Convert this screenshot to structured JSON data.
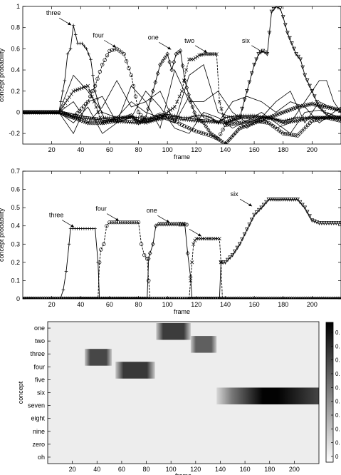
{
  "chart_data": [
    {
      "type": "line",
      "title": "",
      "xlabel": "frame",
      "ylabel": "concept probability",
      "xlim": [
        0,
        220
      ],
      "ylim": [
        -0.3,
        1.0
      ],
      "xticks": [
        20,
        40,
        60,
        80,
        100,
        120,
        140,
        160,
        180,
        200
      ],
      "yticks": [
        -0.2,
        0,
        0.2,
        0.4,
        0.6,
        0.8,
        1
      ],
      "ytick_labels": [
        "-0.2",
        "0",
        "0.2",
        "0.4",
        "0.6",
        "0.8",
        "1"
      ],
      "grid": false,
      "annotations": [
        {
          "text": "three",
          "x": 35,
          "y": 0.81
        },
        {
          "text": "four",
          "x": 66,
          "y": 0.6
        },
        {
          "text": "one",
          "x": 104,
          "y": 0.58
        },
        {
          "text": "two",
          "x": 129,
          "y": 0.55
        },
        {
          "text": "six",
          "x": 168,
          "y": 0.55
        }
      ],
      "series": [
        {
          "marker": "plus",
          "x": [
            0,
            25,
            29,
            31,
            33,
            35,
            38,
            41,
            44,
            47,
            50,
            53,
            56,
            60,
            65,
            70,
            75,
            80,
            85,
            90,
            95,
            100,
            105,
            110,
            115,
            120,
            125,
            130,
            135,
            140,
            150,
            160,
            170,
            180,
            190,
            200,
            210,
            220
          ],
          "y": [
            0,
            0,
            0.3,
            0.55,
            0.6,
            0.82,
            0.65,
            0.65,
            0.6,
            0.5,
            0.2,
            0.05,
            -0.05,
            -0.05,
            -0.05,
            -0.05,
            -0.04,
            -0.05,
            -0.06,
            -0.05,
            -0.03,
            -0.02,
            -0.03,
            -0.05,
            -0.05,
            -0.03,
            -0.03,
            -0.05,
            -0.1,
            -0.05,
            -0.03,
            -0.03,
            -0.05,
            -0.08,
            -0.05,
            -0.05,
            -0.05,
            -0.05
          ]
        },
        {
          "marker": "circle",
          "x": [
            0,
            25,
            35,
            45,
            50,
            55,
            60,
            65,
            70,
            75,
            78,
            80,
            85,
            90,
            95,
            100,
            105,
            110,
            115,
            120,
            125,
            130,
            135,
            140,
            150,
            160,
            170,
            180,
            190,
            200,
            210,
            220
          ],
          "y": [
            0,
            0,
            -0.05,
            0.1,
            0.25,
            0.45,
            0.58,
            0.6,
            0.55,
            0.35,
            0.15,
            0,
            -0.08,
            -0.05,
            -0.02,
            -0.05,
            -0.08,
            -0.12,
            -0.15,
            -0.18,
            -0.2,
            -0.22,
            -0.25,
            -0.12,
            -0.1,
            -0.08,
            -0.1,
            -0.2,
            -0.22,
            -0.08,
            -0.05,
            -0.08
          ]
        },
        {
          "marker": "diamond",
          "x": [
            0,
            25,
            35,
            45,
            55,
            65,
            75,
            80,
            85,
            90,
            95,
            100,
            103,
            106,
            109,
            112,
            116,
            120,
            125,
            130,
            140,
            150,
            160,
            170,
            180,
            190,
            200,
            210,
            220
          ],
          "y": [
            0,
            0,
            -0.05,
            -0.1,
            -0.1,
            -0.08,
            -0.03,
            -0.1,
            -0.05,
            0.2,
            0.45,
            0.55,
            0.4,
            0.55,
            0.58,
            0.3,
            0.1,
            -0.05,
            -0.1,
            -0.2,
            -0.3,
            -0.15,
            -0.1,
            -0.05,
            0,
            0.05,
            0.08,
            0.05,
            0.02
          ]
        },
        {
          "marker": "cross",
          "x": [
            0,
            25,
            35,
            45,
            55,
            65,
            75,
            85,
            95,
            105,
            110,
            113,
            115,
            118,
            122,
            126,
            130,
            134,
            136,
            140,
            150,
            160,
            170,
            180,
            190,
            200,
            210,
            220
          ],
          "y": [
            0,
            0,
            0.2,
            0.25,
            -0.1,
            -0.05,
            -0.05,
            -0.1,
            -0.05,
            0.05,
            0.2,
            0.4,
            0.5,
            0.5,
            0.54,
            0.55,
            0.55,
            0.55,
            0.1,
            -0.1,
            -0.05,
            -0.05,
            -0.05,
            -0.1,
            -0.08,
            -0.05,
            -0.05,
            -0.05
          ]
        },
        {
          "marker": "triangle",
          "x": [
            0,
            25,
            40,
            60,
            80,
            100,
            120,
            140,
            150,
            155,
            160,
            163,
            166,
            169,
            172,
            175,
            178,
            180,
            183,
            186,
            189,
            192,
            195,
            200,
            205,
            210,
            215,
            220
          ],
          "y": [
            0,
            0,
            -0.05,
            -0.08,
            -0.1,
            -0.05,
            -0.08,
            -0.1,
            -0.05,
            0.2,
            0.45,
            0.55,
            0.58,
            0.55,
            0.95,
            1.0,
            0.98,
            0.9,
            0.75,
            0.65,
            0.55,
            0.5,
            0.35,
            0.2,
            0.05,
            -0.02,
            -0.05,
            -0.05
          ]
        },
        {
          "marker": "none",
          "x": [
            0,
            25,
            35,
            45,
            55,
            65,
            75,
            85,
            95,
            105,
            115,
            125,
            135,
            145,
            155,
            165,
            175,
            185,
            195,
            205,
            210,
            215,
            220
          ],
          "y": [
            0,
            0,
            0.35,
            0.2,
            0,
            -0.05,
            0.1,
            0,
            -0.05,
            -0.1,
            0.35,
            0.45,
            0,
            -0.05,
            -0.15,
            -0.05,
            -0.15,
            -0.1,
            0.1,
            0.3,
            0.3,
            0.1,
            0
          ]
        },
        {
          "marker": "none",
          "x": [
            0,
            25,
            35,
            45,
            55,
            65,
            75,
            85,
            95,
            105,
            115,
            125,
            135,
            145,
            155,
            165,
            175,
            185,
            195,
            205,
            220
          ],
          "y": [
            0,
            0,
            -0.2,
            0.1,
            0.15,
            -0.1,
            0.25,
            0.1,
            0.2,
            -0.1,
            0.15,
            -0.05,
            -0.1,
            0.1,
            0.15,
            0.1,
            0,
            0.1,
            0.05,
            -0.1,
            0.05
          ]
        },
        {
          "marker": "none",
          "x": [
            0,
            25,
            35,
            45,
            55,
            65,
            75,
            85,
            95,
            105,
            115,
            125,
            135,
            145,
            155,
            165,
            175,
            185,
            195,
            205,
            220
          ],
          "y": [
            0,
            0,
            0.1,
            -0.1,
            0.05,
            0.3,
            0.05,
            0.1,
            -0.15,
            0.4,
            0.1,
            0.1,
            0.2,
            0,
            -0.1,
            -0.05,
            0.1,
            0.2,
            -0.1,
            0.1,
            0
          ]
        },
        {
          "marker": "none",
          "x": [
            0,
            25,
            35,
            45,
            55,
            65,
            75,
            85,
            95,
            105,
            115,
            125,
            135,
            145,
            155,
            165,
            175,
            185,
            195,
            205,
            220
          ],
          "y": [
            0,
            0,
            -0.1,
            0.05,
            -0.2,
            -0.1,
            -0.05,
            0.2,
            0.05,
            -0.15,
            -0.2,
            0,
            -0.05,
            -0.15,
            -0.08,
            0,
            -0.1,
            -0.2,
            0,
            0.02,
            -0.05
          ]
        }
      ]
    },
    {
      "type": "line",
      "title": "",
      "xlabel": "frame",
      "ylabel": "concept probability",
      "xlim": [
        0,
        220
      ],
      "ylim": [
        0,
        0.7
      ],
      "xticks": [
        20,
        40,
        60,
        80,
        100,
        120,
        140,
        160,
        180,
        200
      ],
      "yticks": [
        0,
        0.1,
        0.2,
        0.3,
        0.4,
        0.5,
        0.6,
        0.7
      ],
      "ytick_labels": [
        "0",
        "0.1",
        "0.2",
        "0.3",
        "0.4",
        "0.5",
        "0.6",
        "0.7"
      ],
      "grid": false,
      "annotations": [
        {
          "text": "three",
          "x": 37,
          "y": 0.385
        },
        {
          "text": "four",
          "x": 68,
          "y": 0.42
        },
        {
          "text": "one",
          "x": 103,
          "y": 0.41
        },
        {
          "text": "two",
          "x": 125,
          "y": 0.335
        },
        {
          "text": "six",
          "x": 160,
          "y": 0.5
        }
      ],
      "series": [
        {
          "marker": "plus",
          "x": [
            0,
            26,
            28,
            30,
            32,
            33,
            50,
            52,
            53,
            220
          ],
          "y": [
            0,
            0,
            0.05,
            0.15,
            0.3,
            0.385,
            0.385,
            0.2,
            0,
            0
          ]
        },
        {
          "marker": "circle",
          "x": [
            0,
            52,
            53,
            54,
            56,
            58,
            60,
            80,
            82,
            84,
            86,
            87,
            88,
            220
          ],
          "y": [
            0,
            0,
            0.2,
            0.27,
            0.3,
            0.4,
            0.42,
            0.42,
            0.3,
            0.24,
            0.22,
            0.1,
            0,
            0
          ]
        },
        {
          "marker": "diamond",
          "x": [
            0,
            86,
            87,
            88,
            90,
            92,
            94,
            112,
            114,
            116,
            117,
            220
          ],
          "y": [
            0,
            0,
            0.22,
            0.25,
            0.3,
            0.4,
            0.41,
            0.41,
            0.25,
            0.12,
            0,
            0
          ]
        },
        {
          "marker": "cross",
          "x": [
            0,
            115,
            116,
            117,
            118,
            119,
            120,
            136,
            137,
            138,
            220
          ],
          "y": [
            0,
            0,
            0.1,
            0.2,
            0.3,
            0.32,
            0.33,
            0.33,
            0.2,
            0,
            0
          ]
        },
        {
          "marker": "triangle",
          "x": [
            0,
            136,
            137,
            140,
            145,
            150,
            155,
            160,
            165,
            170,
            180,
            190,
            195,
            200,
            205,
            210,
            215,
            220
          ],
          "y": [
            0,
            0,
            0.2,
            0.2,
            0.24,
            0.3,
            0.38,
            0.46,
            0.5,
            0.545,
            0.545,
            0.545,
            0.5,
            0.43,
            0.415,
            0.415,
            0.415,
            0.415
          ]
        }
      ]
    },
    {
      "type": "heatmap",
      "title": "",
      "xlabel": "frame",
      "ylabel": "concept",
      "xlim": [
        0,
        220
      ],
      "xticks": [
        20,
        40,
        60,
        80,
        100,
        120,
        140,
        160,
        180,
        200
      ],
      "categories": [
        "one",
        "two",
        "three",
        "four",
        "five",
        "six",
        "seven",
        "eight",
        "nine",
        "zero",
        "oh"
      ],
      "colorbar": {
        "ticks": [
          "0.",
          "0.",
          "0.",
          "0.",
          "0.",
          "0.",
          "0.",
          "0.",
          "0.",
          "0"
        ]
      },
      "blocks": [
        {
          "concept": "one",
          "x_start": 88,
          "x_end": 116,
          "value": 0.41
        },
        {
          "concept": "two",
          "x_start": 116,
          "x_end": 137,
          "value": 0.33
        },
        {
          "concept": "three",
          "x_start": 30,
          "x_end": 52,
          "value": 0.385
        },
        {
          "concept": "four",
          "x_start": 55,
          "x_end": 87,
          "value": 0.42
        },
        {
          "concept": "six",
          "x_start": 137,
          "x_end": 220,
          "value": 0.545
        }
      ]
    }
  ]
}
